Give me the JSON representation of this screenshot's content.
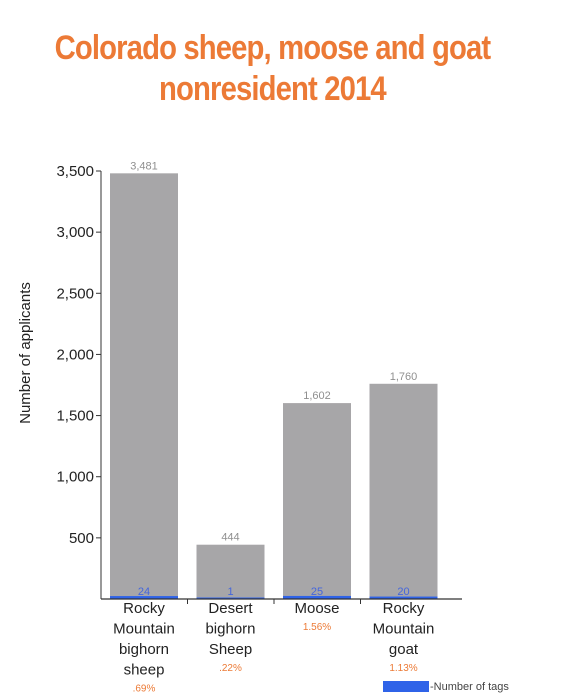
{
  "title_lines": [
    "Colorado sheep, moose and goat",
    "nonresident 2014"
  ],
  "colors": {
    "title": "#ec7a36",
    "applicants_bar": "#a7a6a8",
    "tags_bar": "#2f63e8",
    "percent": "#ec7a36",
    "axis": "#333333"
  },
  "chart_data": {
    "type": "bar",
    "title": "Colorado sheep, moose and goat nonresident 2014",
    "ylabel": "Number of applicants",
    "ylim": [
      0,
      3500
    ],
    "yticks": [
      500,
      1000,
      1500,
      2000,
      2500,
      3000,
      3500
    ],
    "ytick_labels": [
      "500",
      "1,000",
      "1,500",
      "2,000",
      "2,500",
      "3,000",
      "3,500"
    ],
    "categories": [
      [
        "Rocky",
        "Mountain",
        "bighorn",
        "sheep"
      ],
      [
        "Desert",
        "bighorn",
        "Sheep"
      ],
      [
        "Moose"
      ],
      [
        "Rocky",
        "Mountain",
        "goat"
      ]
    ],
    "series": [
      {
        "values": [
          3481,
          444,
          1602,
          1760
        ],
        "labels": [
          "3,481",
          "444",
          "1,602",
          "1,760"
        ]
      },
      {
        "name": "Number of tags",
        "values": [
          24,
          1,
          25,
          20
        ],
        "labels": [
          "24",
          "1",
          "25",
          "20"
        ]
      }
    ],
    "percent_labels": [
      ".69%",
      ".22%",
      "1.56%",
      "1.13%"
    ],
    "legend": {
      "label": "-Number of tags",
      "position": "bottom-right"
    }
  }
}
